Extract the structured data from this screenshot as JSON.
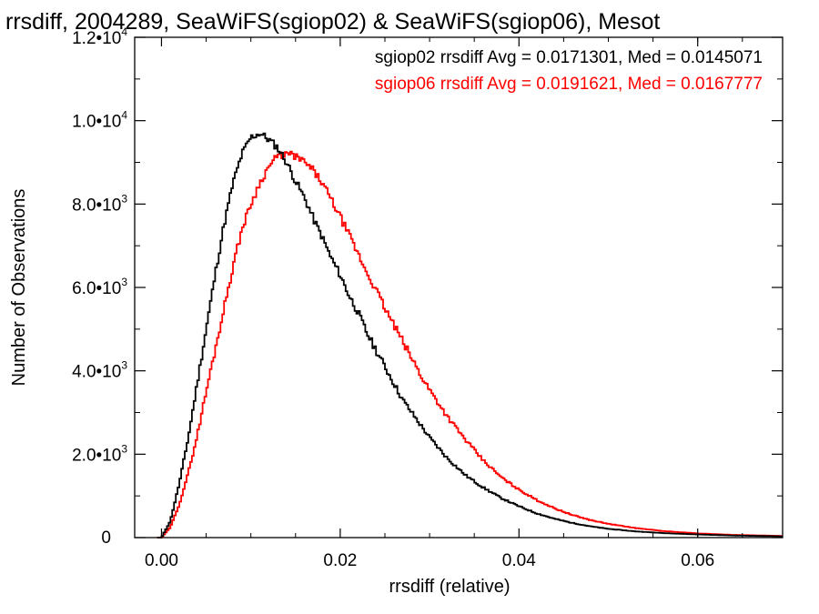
{
  "chart_data": {
    "type": "line",
    "title": "rrsdiff, 2004289, SeaWiFS(sgiop02) & SeaWiFS(sgiop06), Mesot",
    "xlabel": "rrsdiff (relative)",
    "ylabel": "Number of Observations",
    "xlim": [
      -0.003,
      0.0695
    ],
    "ylim": [
      0,
      12000
    ],
    "x_ticks": [
      {
        "value": 0.0,
        "label": "0.00"
      },
      {
        "value": 0.02,
        "label": "0.02"
      },
      {
        "value": 0.04,
        "label": "0.04"
      },
      {
        "value": 0.06,
        "label": "0.06"
      }
    ],
    "y_ticks": [
      {
        "value": 0,
        "label": "0"
      },
      {
        "value": 2000,
        "mantissa": "2.0",
        "exp": "3"
      },
      {
        "value": 4000,
        "mantissa": "4.0",
        "exp": "3"
      },
      {
        "value": 6000,
        "mantissa": "6.0",
        "exp": "3"
      },
      {
        "value": 8000,
        "mantissa": "8.0",
        "exp": "3"
      },
      {
        "value": 10000,
        "mantissa": "1.0",
        "exp": "4"
      },
      {
        "value": 12000,
        "mantissa": "1.2",
        "exp": "4"
      }
    ],
    "grid": false,
    "legend_position": "top-right",
    "series": [
      {
        "name": "sgiop02",
        "color": "#000000",
        "legend_text": "sgiop02 rrsdiff Avg = 0.0171301, Med = 0.0145071",
        "points": [
          [
            0.0,
            0
          ],
          [
            0.001,
            400
          ],
          [
            0.002,
            1300
          ],
          [
            0.003,
            2400
          ],
          [
            0.004,
            3700
          ],
          [
            0.005,
            5000
          ],
          [
            0.006,
            6300
          ],
          [
            0.007,
            7500
          ],
          [
            0.008,
            8500
          ],
          [
            0.009,
            9200
          ],
          [
            0.01,
            9600
          ],
          [
            0.011,
            9700
          ],
          [
            0.012,
            9550
          ],
          [
            0.013,
            9350
          ],
          [
            0.014,
            9000
          ],
          [
            0.015,
            8550
          ],
          [
            0.016,
            8150
          ],
          [
            0.017,
            7650
          ],
          [
            0.018,
            7200
          ],
          [
            0.019,
            6700
          ],
          [
            0.02,
            6300
          ],
          [
            0.021,
            5800
          ],
          [
            0.022,
            5400
          ],
          [
            0.023,
            4900
          ],
          [
            0.024,
            4500
          ],
          [
            0.025,
            4100
          ],
          [
            0.026,
            3700
          ],
          [
            0.027,
            3300
          ],
          [
            0.028,
            3000
          ],
          [
            0.029,
            2700
          ],
          [
            0.03,
            2400
          ],
          [
            0.032,
            1900
          ],
          [
            0.034,
            1500
          ],
          [
            0.036,
            1200
          ],
          [
            0.038,
            950
          ],
          [
            0.04,
            750
          ],
          [
            0.042,
            580
          ],
          [
            0.044,
            450
          ],
          [
            0.046,
            350
          ],
          [
            0.048,
            270
          ],
          [
            0.05,
            210
          ],
          [
            0.053,
            150
          ],
          [
            0.056,
            110
          ],
          [
            0.06,
            75
          ],
          [
            0.064,
            50
          ],
          [
            0.0695,
            30
          ]
        ]
      },
      {
        "name": "sgiop06",
        "color": "#ff0000",
        "legend_text": "sgiop06 rrsdiff Avg = 0.0191621, Med = 0.0167777",
        "points": [
          [
            0.0,
            0
          ],
          [
            0.001,
            250
          ],
          [
            0.002,
            800
          ],
          [
            0.003,
            1550
          ],
          [
            0.004,
            2450
          ],
          [
            0.005,
            3500
          ],
          [
            0.006,
            4500
          ],
          [
            0.007,
            5500
          ],
          [
            0.008,
            6500
          ],
          [
            0.009,
            7400
          ],
          [
            0.01,
            8000
          ],
          [
            0.011,
            8500
          ],
          [
            0.012,
            8900
          ],
          [
            0.013,
            9150
          ],
          [
            0.014,
            9200
          ],
          [
            0.015,
            9150
          ],
          [
            0.016,
            9000
          ],
          [
            0.017,
            8800
          ],
          [
            0.018,
            8500
          ],
          [
            0.019,
            8100
          ],
          [
            0.02,
            7700
          ],
          [
            0.021,
            7250
          ],
          [
            0.022,
            6800
          ],
          [
            0.023,
            6350
          ],
          [
            0.024,
            5950
          ],
          [
            0.025,
            5500
          ],
          [
            0.026,
            5100
          ],
          [
            0.027,
            4700
          ],
          [
            0.028,
            4300
          ],
          [
            0.029,
            3900
          ],
          [
            0.03,
            3550
          ],
          [
            0.032,
            2900
          ],
          [
            0.034,
            2350
          ],
          [
            0.036,
            1850
          ],
          [
            0.038,
            1450
          ],
          [
            0.04,
            1150
          ],
          [
            0.042,
            900
          ],
          [
            0.044,
            700
          ],
          [
            0.046,
            540
          ],
          [
            0.048,
            420
          ],
          [
            0.05,
            330
          ],
          [
            0.053,
            230
          ],
          [
            0.056,
            160
          ],
          [
            0.06,
            100
          ],
          [
            0.064,
            65
          ],
          [
            0.0695,
            40
          ]
        ]
      }
    ]
  }
}
